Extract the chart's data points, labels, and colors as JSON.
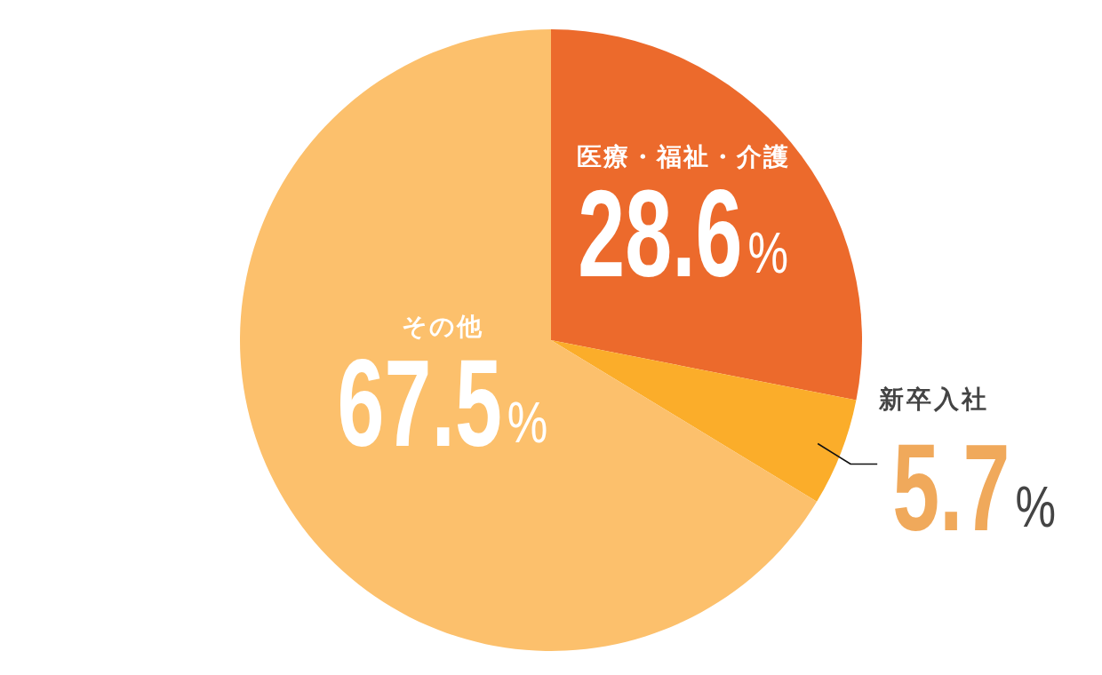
{
  "chart_data": {
    "type": "pie",
    "categories": [
      "医療・福祉・介護",
      "新卒入社",
      "その他"
    ],
    "values": [
      28.6,
      5.7,
      67.5
    ],
    "colors": [
      "#ec6a2c",
      "#fbad2a",
      "#fcc06c"
    ],
    "value_labels": [
      "28.6%",
      "5.7%",
      "67.5%"
    ]
  }
}
